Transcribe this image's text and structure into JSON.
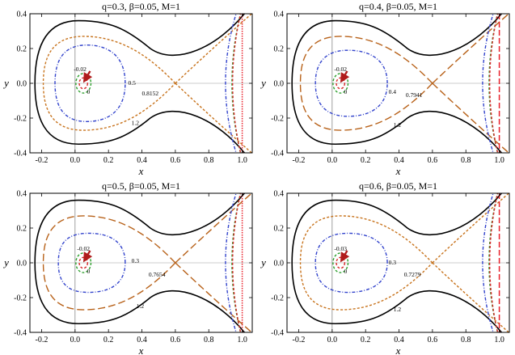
{
  "chart_data": [
    {
      "type": "line",
      "title": "q=0.3, β=0.05, M=1",
      "xlabel": "x",
      "ylabel": "y",
      "xlim": [
        -0.27,
        1.06
      ],
      "ylim": [
        -0.4,
        0.4
      ],
      "xticks": [
        "-0.2",
        "0.0",
        "0.2",
        "0.4",
        "0.6",
        "0.8",
        "1.0"
      ],
      "yticks": [
        "0.4",
        "0.2",
        "0.0",
        "-0.2",
        "-0.4"
      ],
      "saddle_point": [
        0.6,
        0.0
      ],
      "vertical_asymptote": 1.0,
      "arrow_target": [
        0.05,
        0.0
      ],
      "series": [
        {
          "name": "1.2",
          "style": "solid",
          "color": "#000000",
          "x_left": -0.24,
          "y_max": 0.36,
          "y_min": -0.35
        },
        {
          "name": "0.8152",
          "style": "short-dash",
          "color": "#c8741e",
          "separatrix": true
        },
        {
          "name": "0.5",
          "style": "dot-dash",
          "color": "#3344cc",
          "x_left": -0.12,
          "x_right": 0.3,
          "y_max": 0.22
        },
        {
          "name": "0",
          "style": "short-dash",
          "color": "#2ca02c",
          "center": [
            0.05,
            0.0
          ],
          "radius": 0.045
        },
        {
          "name": "-0.02",
          "style": "short-dash",
          "color": "#d62728",
          "center": [
            0.05,
            0.0
          ],
          "radius": 0.025
        }
      ],
      "labels": [
        {
          "text": "-0.02",
          "x": 0.03,
          "y": 0.07
        },
        {
          "text": "0",
          "x": 0.08,
          "y": -0.06
        },
        {
          "text": "0.5",
          "x": 0.34,
          "y": -0.01
        },
        {
          "text": "0.8152",
          "x": 0.45,
          "y": -0.07
        },
        {
          "text": "1.2",
          "x": 0.36,
          "y": -0.24
        }
      ]
    },
    {
      "type": "line",
      "title": "q=0.4, β=0.05, M=1",
      "xlabel": "x",
      "ylabel": "y",
      "xlim": [
        -0.27,
        1.06
      ],
      "ylim": [
        -0.4,
        0.4
      ],
      "xticks": [
        "-0.2",
        "0.0",
        "0.2",
        "0.4",
        "0.6",
        "0.8",
        "1.0"
      ],
      "yticks": [
        "0.4",
        "0.2",
        "0.0",
        "-0.2",
        "-0.4"
      ],
      "saddle_point": [
        0.6,
        0.0
      ],
      "vertical_asymptote": 1.0,
      "arrow_target": [
        0.05,
        0.0
      ],
      "series": [
        {
          "name": "1.2",
          "style": "solid",
          "color": "#000000",
          "x_left": -0.24,
          "y_max": 0.36,
          "y_min": -0.35
        },
        {
          "name": "0.7941",
          "style": "long-dash",
          "color": "#b8621a",
          "separatrix": true
        },
        {
          "name": "0.4",
          "style": "dot-dash",
          "color": "#3344cc",
          "x_left": -0.1,
          "x_right": 0.33,
          "y_max": 0.19
        },
        {
          "name": "0",
          "style": "short-dash",
          "color": "#2ca02c",
          "center": [
            0.05,
            0.0
          ],
          "radius": 0.045
        },
        {
          "name": "-0.02",
          "style": "short-dash",
          "color": "#d62728",
          "center": [
            0.05,
            0.0
          ],
          "radius": 0.025
        }
      ],
      "labels": [
        {
          "text": "-0.02",
          "x": 0.05,
          "y": 0.07
        },
        {
          "text": "0",
          "x": 0.08,
          "y": -0.06
        },
        {
          "text": "0.4",
          "x": 0.36,
          "y": -0.06
        },
        {
          "text": "0.7941",
          "x": 0.49,
          "y": -0.08
        },
        {
          "text": "1.2",
          "x": 0.39,
          "y": -0.25
        }
      ]
    },
    {
      "type": "line",
      "title": "q=0.5, β=0.05, M=1",
      "xlabel": "x",
      "ylabel": "y",
      "xlim": [
        -0.27,
        1.06
      ],
      "ylim": [
        -0.4,
        0.4
      ],
      "xticks": [
        "-0.2",
        "0.0",
        "0.2",
        "0.4",
        "0.6",
        "0.8",
        "1.0"
      ],
      "yticks": [
        "0.4",
        "0.2",
        "0.0",
        "-0.2",
        "-0.4"
      ],
      "saddle_point": [
        0.6,
        0.0
      ],
      "vertical_asymptote": 1.0,
      "arrow_target": [
        0.05,
        0.0
      ],
      "series": [
        {
          "name": "1.2",
          "style": "solid",
          "color": "#000000",
          "x_left": -0.24,
          "y_max": 0.36,
          "y_min": -0.35
        },
        {
          "name": "0.7654",
          "style": "long-dash",
          "color": "#b8621a",
          "separatrix": true
        },
        {
          "name": "0.3",
          "style": "dot-dash",
          "color": "#3344cc",
          "x_left": -0.1,
          "x_right": 0.3,
          "y_max": 0.17
        },
        {
          "name": "0",
          "style": "short-dash",
          "color": "#2ca02c",
          "center": [
            0.05,
            0.0
          ],
          "radius": 0.045
        },
        {
          "name": "-0.02",
          "style": "short-dash",
          "color": "#d62728",
          "center": [
            0.05,
            0.0
          ],
          "radius": 0.025
        }
      ],
      "labels": [
        {
          "text": "-0.02",
          "x": 0.05,
          "y": 0.07
        },
        {
          "text": "0",
          "x": 0.08,
          "y": -0.06
        },
        {
          "text": "0.3",
          "x": 0.36,
          "y": 0.0
        },
        {
          "text": "0.7654",
          "x": 0.49,
          "y": -0.08
        },
        {
          "text": "1.2",
          "x": 0.39,
          "y": -0.26
        }
      ]
    },
    {
      "type": "line",
      "title": "q=0.6, β=0.05, M=1",
      "xlabel": "x",
      "ylabel": "y",
      "xlim": [
        -0.27,
        1.06
      ],
      "ylim": [
        -0.4,
        0.4
      ],
      "xticks": [
        "-0.2",
        "0.0",
        "0.2",
        "0.4",
        "0.6",
        "0.8",
        "1.0"
      ],
      "yticks": [
        "0.4",
        "0.2",
        "0.0",
        "-0.2",
        "-0.4"
      ],
      "saddle_point": [
        0.6,
        0.0
      ],
      "vertical_asymptote": 1.0,
      "arrow_target": [
        0.05,
        0.0
      ],
      "series": [
        {
          "name": "1.2",
          "style": "solid",
          "color": "#000000",
          "x_left": -0.24,
          "y_max": 0.36,
          "y_min": -0.35
        },
        {
          "name": "0.7279",
          "style": "short-dash",
          "color": "#c8741e",
          "separatrix": true
        },
        {
          "name": "0.3",
          "style": "dot-dash",
          "color": "#3344cc",
          "x_left": -0.1,
          "x_right": 0.33,
          "y_max": 0.17
        },
        {
          "name": "0",
          "style": "short-dash",
          "color": "#2ca02c",
          "center": [
            0.05,
            0.0
          ],
          "radius": 0.045
        },
        {
          "name": "-0.03",
          "style": "short-dash",
          "color": "#d62728",
          "center": [
            0.05,
            0.0
          ],
          "radius": 0.025
        }
      ],
      "labels": [
        {
          "text": "-0.03",
          "x": 0.05,
          "y": 0.07
        },
        {
          "text": "0",
          "x": 0.08,
          "y": -0.06
        },
        {
          "text": "0.3",
          "x": 0.36,
          "y": -0.01
        },
        {
          "text": "0.7279",
          "x": 0.48,
          "y": -0.08
        },
        {
          "text": "1.2",
          "x": 0.39,
          "y": -0.28
        }
      ]
    }
  ]
}
